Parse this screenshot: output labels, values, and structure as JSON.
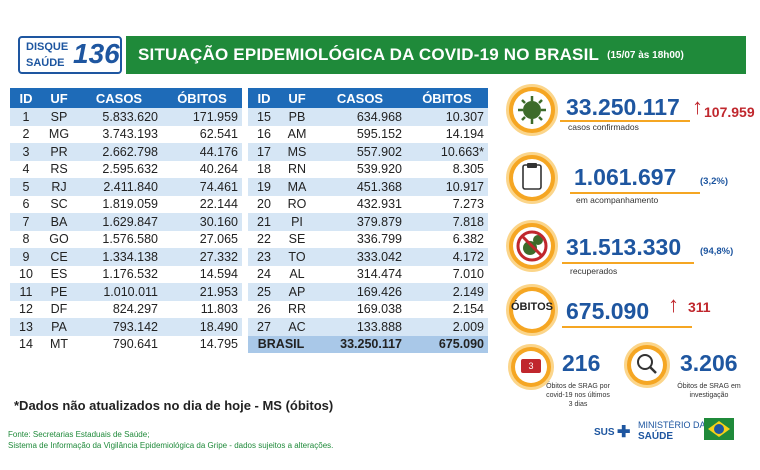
{
  "header": {
    "disque_line1": "DISQUE",
    "disque_line2": "SAÚDE",
    "disque_number": "136",
    "title": "SITUAÇÃO EPIDEMIOLÓGICA DA COVID-19 NO BRASIL",
    "date": "(15/07 às 18h00)"
  },
  "table": {
    "headers": [
      "ID",
      "UF",
      "CASOS",
      "ÓBITOS"
    ],
    "left_rows": [
      [
        "1",
        "SP",
        "5.833.620",
        "171.959"
      ],
      [
        "2",
        "MG",
        "3.743.193",
        "62.541"
      ],
      [
        "3",
        "PR",
        "2.662.798",
        "44.176"
      ],
      [
        "4",
        "RS",
        "2.595.632",
        "40.264"
      ],
      [
        "5",
        "RJ",
        "2.411.840",
        "74.461"
      ],
      [
        "6",
        "SC",
        "1.819.059",
        "22.144"
      ],
      [
        "7",
        "BA",
        "1.629.847",
        "30.160"
      ],
      [
        "8",
        "GO",
        "1.576.580",
        "27.065"
      ],
      [
        "9",
        "CE",
        "1.334.138",
        "27.332"
      ],
      [
        "10",
        "ES",
        "1.176.532",
        "14.594"
      ],
      [
        "11",
        "PE",
        "1.010.011",
        "21.953"
      ],
      [
        "12",
        "DF",
        "824.297",
        "11.803"
      ],
      [
        "13",
        "PA",
        "793.142",
        "18.490"
      ],
      [
        "14",
        "MT",
        "790.641",
        "14.795"
      ]
    ],
    "right_rows": [
      [
        "15",
        "PB",
        "634.968",
        "10.307"
      ],
      [
        "16",
        "AM",
        "595.152",
        "14.194"
      ],
      [
        "17",
        "MS",
        "557.902",
        "10.663*"
      ],
      [
        "18",
        "RN",
        "539.920",
        "8.305"
      ],
      [
        "19",
        "MA",
        "451.368",
        "10.917"
      ],
      [
        "20",
        "RO",
        "432.931",
        "7.273"
      ],
      [
        "21",
        "PI",
        "379.879",
        "7.818"
      ],
      [
        "22",
        "SE",
        "336.799",
        "6.382"
      ],
      [
        "23",
        "TO",
        "333.042",
        "4.172"
      ],
      [
        "24",
        "AL",
        "314.474",
        "7.010"
      ],
      [
        "25",
        "AP",
        "169.426",
        "2.149"
      ],
      [
        "26",
        "RR",
        "169.038",
        "2.154"
      ],
      [
        "27",
        "AC",
        "133.888",
        "2.009"
      ]
    ],
    "total": [
      "BRASIL",
      "33.250.117",
      "675.090"
    ]
  },
  "stats": {
    "confirmed": {
      "value": "33.250.117",
      "increase": "107.959",
      "label": "casos confirmados"
    },
    "monitoring": {
      "value": "1.061.697",
      "pct": "(3,2%)",
      "label": "em acompanhamento"
    },
    "recovered": {
      "value": "31.513.330",
      "pct": "(94,8%)",
      "label": "recuperados"
    },
    "deaths": {
      "badge": "ÓBITOS",
      "value": "675.090",
      "increase": "311"
    },
    "srag_3days": {
      "value": "216",
      "label": "Óbitos de SRAG por covid-19 nos últimos 3 dias",
      "calendar": "3"
    },
    "srag_investigation": {
      "value": "3.206",
      "label": "Óbitos de SRAG em investigação"
    }
  },
  "footnote": "*Dados não atualizados no dia de hoje - MS (óbitos)",
  "source_line1": "Fonte: Secretarias Estaduais de Saúde;",
  "source_line2": "Sistema de Informação da Vigilância Epidemiológica da Gripe - dados sujeitos a alterações.",
  "logos": {
    "sus": "SUS",
    "ministry_line1": "MINISTÉRIO DA",
    "ministry_line2": "SAÚDE"
  },
  "colors": {
    "green": "#1f8a3a",
    "blue": "#1e6bb8",
    "orange": "#f5a623",
    "red": "#c0272d"
  }
}
